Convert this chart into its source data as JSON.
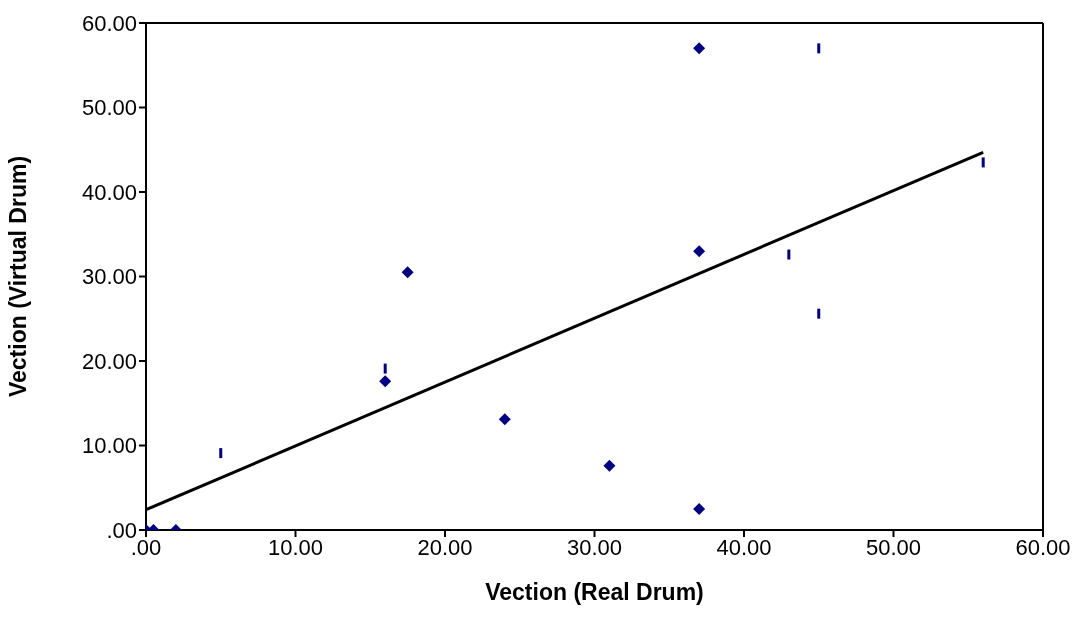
{
  "chart_data": {
    "type": "scatter",
    "xlabel": "Vection (Real Drum)",
    "ylabel": "Vection (Virtual Drum)",
    "xlim": [
      0,
      60
    ],
    "ylim": [
      0,
      60
    ],
    "xticks": [
      {
        "value": 0,
        "label": ".00"
      },
      {
        "value": 10,
        "label": "10.00"
      },
      {
        "value": 20,
        "label": "20.00"
      },
      {
        "value": 30,
        "label": "30.00"
      },
      {
        "value": 40,
        "label": "40.00"
      },
      {
        "value": 50,
        "label": "50.00"
      },
      {
        "value": 60,
        "label": "60.00"
      }
    ],
    "yticks": [
      {
        "value": 0,
        "label": ".00"
      },
      {
        "value": 10,
        "label": "10.00"
      },
      {
        "value": 20,
        "label": "20.00"
      },
      {
        "value": 30,
        "label": "30.00"
      },
      {
        "value": 40,
        "label": "40.00"
      },
      {
        "value": 50,
        "label": "50.00"
      },
      {
        "value": 60,
        "label": "60.00"
      }
    ],
    "grid": false,
    "legend": false,
    "series": [
      {
        "marker": "diamond",
        "color": "#000080",
        "x": [
          0,
          0.5,
          2,
          16,
          17.5,
          24,
          31,
          37,
          37,
          37
        ],
        "values": [
          0,
          0,
          0,
          17.6,
          30.5,
          13.1,
          7.6,
          57,
          33,
          2.5
        ]
      },
      {
        "color": "#000080",
        "x": [
          5,
          16,
          43,
          45,
          45,
          56
        ],
        "values": [
          9.1,
          19.1,
          32.6,
          57,
          25.6,
          43.5
        ]
      },
      {
        "type": "line",
        "marker": "none",
        "color": "#000000",
        "x": [
          0,
          56
        ],
        "values": [
          2.4,
          44.7
        ]
      }
    ]
  }
}
